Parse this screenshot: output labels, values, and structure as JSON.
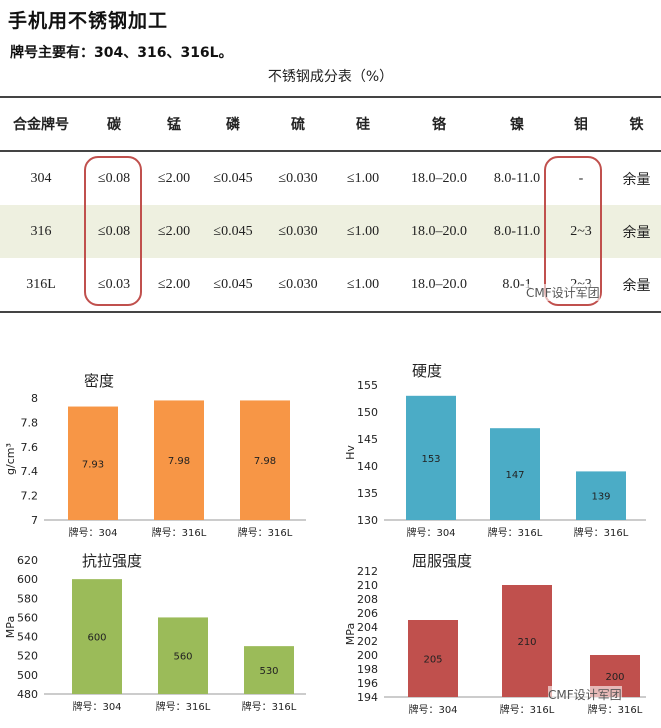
{
  "page": {
    "title": "手机用不锈钢加工",
    "subtitle": "牌号主要有：304、316、316L。",
    "watermark": "CMF设计军团"
  },
  "table": {
    "caption": "不锈钢成分表（%）",
    "headers": [
      "合金牌号",
      "碳",
      "锰",
      "磷",
      "硫",
      "硅",
      "铬",
      "镍",
      "钼",
      "铁"
    ],
    "rows": [
      [
        "304",
        "≤0.08",
        "≤2.00",
        "≤0.045",
        "≤0.030",
        "≤1.00",
        "18.0–20.0",
        "8.0-11.0",
        "-",
        "余量"
      ],
      [
        "316",
        "≤0.08",
        "≤2.00",
        "≤0.045",
        "≤0.030",
        "≤1.00",
        "18.0–20.0",
        "8.0-11.0",
        "2~3",
        "余量"
      ],
      [
        "316L",
        "≤0.03",
        "≤2.00",
        "≤0.045",
        "≤0.030",
        "≤1.00",
        "18.0–20.0",
        "8.0-1",
        "2~3",
        "余量"
      ]
    ]
  },
  "colors": {
    "density": "#f79646",
    "hardness": "#4bacc6",
    "tensile": "#9bbb59",
    "yield": "#c0504d",
    "highlight": "#c0504d"
  },
  "chart_data": [
    {
      "type": "bar",
      "title": "密度",
      "ylabel": "g/cm³",
      "categories": [
        "牌号：304",
        "牌号：316L",
        "牌号：316L"
      ],
      "values": [
        7.93,
        7.98,
        7.98
      ],
      "value_labels": [
        "7.93",
        "7.98",
        "7.98"
      ],
      "ylim": [
        7,
        8
      ],
      "yticks": [
        "7",
        "7.2",
        "7.4",
        "7.6",
        "7.8",
        "8"
      ]
    },
    {
      "type": "bar",
      "title": "硬度",
      "ylabel": "Hv",
      "categories": [
        "牌号：304",
        "牌号：316L",
        "牌号：316L"
      ],
      "values": [
        153,
        147,
        139
      ],
      "value_labels": [
        "153",
        "147",
        "139"
      ],
      "ylim": [
        130,
        155
      ],
      "yticks": [
        "130",
        "135",
        "140",
        "145",
        "150",
        "155"
      ]
    },
    {
      "type": "bar",
      "title": "抗拉强度",
      "ylabel": "MPa",
      "categories": [
        "牌号：304",
        "牌号：316L",
        "牌号：316L"
      ],
      "values": [
        600,
        560,
        530
      ],
      "value_labels": [
        "600",
        "560",
        "530"
      ],
      "ylim": [
        480,
        620
      ],
      "yticks": [
        "480",
        "500",
        "520",
        "540",
        "560",
        "580",
        "600",
        "620"
      ]
    },
    {
      "type": "bar",
      "title": "屈服强度",
      "ylabel": "MPa",
      "categories": [
        "牌号：304",
        "牌号：316L",
        "牌号：316L"
      ],
      "values": [
        205,
        210,
        200
      ],
      "value_labels": [
        "205",
        "210",
        "200"
      ],
      "ylim": [
        194,
        212
      ],
      "yticks": [
        "194",
        "196",
        "198",
        "200",
        "202",
        "204",
        "206",
        "208",
        "210",
        "212"
      ]
    }
  ]
}
